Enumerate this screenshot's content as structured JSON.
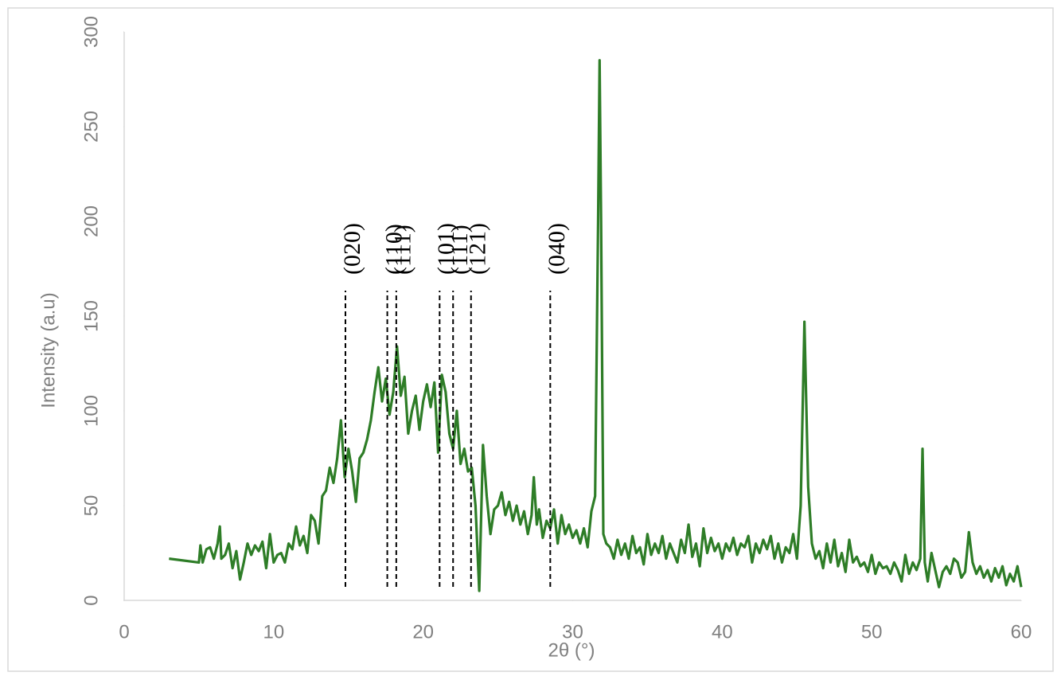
{
  "chart_data": {
    "type": "line",
    "x_label": "2θ (°)",
    "y_label": "Intensity (a.u)",
    "x": [
      3,
      5,
      5.1,
      5.25,
      5.5,
      5.75,
      6,
      6.25,
      6.4,
      6.5,
      6.75,
      7,
      7.25,
      7.5,
      7.75,
      8,
      8.25,
      8.5,
      8.75,
      9,
      9.25,
      9.5,
      9.75,
      10,
      10.25,
      10.5,
      10.75,
      11,
      11.25,
      11.5,
      11.75,
      12,
      12.25,
      12.5,
      12.75,
      13,
      13.25,
      13.5,
      13.75,
      14,
      14.25,
      14.5,
      14.75,
      15,
      15.25,
      15.5,
      15.75,
      16,
      16.25,
      16.5,
      16.75,
      17,
      17.25,
      17.5,
      17.75,
      18,
      18.25,
      18.5,
      18.75,
      19,
      19.25,
      19.5,
      19.75,
      20,
      20.25,
      20.5,
      20.75,
      21,
      21.25,
      21.5,
      21.75,
      22,
      22.25,
      22.5,
      22.75,
      23,
      23.25,
      23.5,
      23.75,
      24,
      24.25,
      24.5,
      24.75,
      25,
      25.25,
      25.5,
      25.75,
      26,
      26.25,
      26.5,
      26.75,
      27,
      27.25,
      27.4,
      27.6,
      27.75,
      28,
      28.25,
      28.5,
      28.75,
      29,
      29.25,
      29.5,
      29.75,
      30,
      30.25,
      30.5,
      30.75,
      31,
      31.25,
      31.5,
      31.7,
      31.8,
      31.9,
      32.05,
      32.25,
      32.5,
      32.75,
      33,
      33.25,
      33.5,
      33.75,
      34,
      34.25,
      34.5,
      34.75,
      35,
      35.25,
      35.5,
      35.75,
      36,
      36.25,
      36.5,
      36.75,
      37,
      37.25,
      37.5,
      37.75,
      38,
      38.25,
      38.5,
      38.75,
      39,
      39.25,
      39.5,
      39.75,
      40,
      40.25,
      40.5,
      40.75,
      41,
      41.25,
      41.5,
      41.75,
      42,
      42.25,
      42.5,
      42.75,
      43,
      43.25,
      43.5,
      43.75,
      44,
      44.25,
      44.5,
      44.75,
      45,
      45.25,
      45.5,
      45.75,
      46,
      46.25,
      46.5,
      46.75,
      47,
      47.25,
      47.5,
      47.75,
      48,
      48.25,
      48.5,
      48.75,
      49,
      49.25,
      49.5,
      49.75,
      50,
      50.25,
      50.5,
      50.75,
      51,
      51.25,
      51.5,
      51.75,
      52,
      52.25,
      52.5,
      52.75,
      53,
      53.25,
      53.4,
      53.55,
      53.75,
      54,
      54.25,
      54.5,
      54.75,
      55,
      55.25,
      55.5,
      55.75,
      56,
      56.25,
      56.5,
      56.75,
      57,
      57.25,
      57.5,
      57.75,
      58,
      58.25,
      58.5,
      58.75,
      59,
      59.25,
      59.5,
      59.75,
      60
    ],
    "series": [
      {
        "color": "#2e7d27",
        "values": [
          22,
          20,
          29,
          20,
          27,
          28,
          22,
          30,
          39,
          22,
          24,
          30,
          17,
          26,
          11,
          20,
          30,
          24,
          29,
          26,
          31,
          17,
          35,
          20,
          24,
          25,
          20,
          30,
          27,
          39,
          29,
          34,
          25,
          45,
          42,
          30,
          55,
          58,
          70,
          62,
          75,
          95,
          65,
          80,
          68,
          52,
          75,
          78,
          85,
          95,
          110,
          123,
          105,
          117,
          98,
          110,
          134,
          108,
          118,
          88,
          100,
          108,
          90,
          105,
          114,
          102,
          115,
          78,
          119,
          110,
          88,
          80,
          100,
          72,
          80,
          68,
          70,
          50,
          5,
          82,
          55,
          35,
          48,
          50,
          57,
          45,
          52,
          42,
          50,
          40,
          47,
          35,
          45,
          65,
          40,
          48,
          33,
          42,
          38,
          48,
          30,
          45,
          35,
          40,
          33,
          37,
          30,
          38,
          28,
          47,
          55,
          200,
          285,
          200,
          35,
          30,
          28,
          22,
          32,
          24,
          30,
          22,
          34,
          25,
          28,
          19,
          35,
          24,
          30,
          25,
          34,
          22,
          30,
          25,
          20,
          32,
          25,
          40,
          23,
          30,
          18,
          38,
          25,
          33,
          26,
          30,
          22,
          30,
          26,
          33,
          24,
          30,
          28,
          34,
          20,
          30,
          25,
          32,
          27,
          34,
          22,
          30,
          20,
          28,
          25,
          35,
          22,
          50,
          147,
          60,
          30,
          22,
          26,
          17,
          30,
          20,
          32,
          18,
          25,
          15,
          32,
          20,
          23,
          18,
          20,
          15,
          24,
          14,
          20,
          17,
          18,
          14,
          20,
          16,
          10,
          24,
          14,
          20,
          16,
          22,
          80,
          20,
          10,
          25,
          16,
          7,
          15,
          18,
          14,
          22,
          20,
          12,
          15,
          36,
          20,
          14,
          18,
          12,
          16,
          10,
          17,
          12,
          18,
          8,
          14,
          10,
          18,
          7
        ]
      }
    ],
    "xlim": [
      0,
      60
    ],
    "xticks": [
      0,
      10,
      20,
      30,
      40,
      50,
      60
    ],
    "ylim": [
      0,
      300
    ],
    "yticks": [
      0,
      50,
      100,
      150,
      200,
      250,
      300
    ],
    "annotations": [
      {
        "x": 14.8,
        "label": "(020)"
      },
      {
        "x": 17.6,
        "label": "(110)"
      },
      {
        "x": 18.2,
        "label": "(111)"
      },
      {
        "x": 21.1,
        "label": "(101)"
      },
      {
        "x": 22.0,
        "label": "(111)"
      },
      {
        "x": 23.2,
        "label": "(121)"
      },
      {
        "x": 28.5,
        "label": "(040)"
      }
    ]
  }
}
